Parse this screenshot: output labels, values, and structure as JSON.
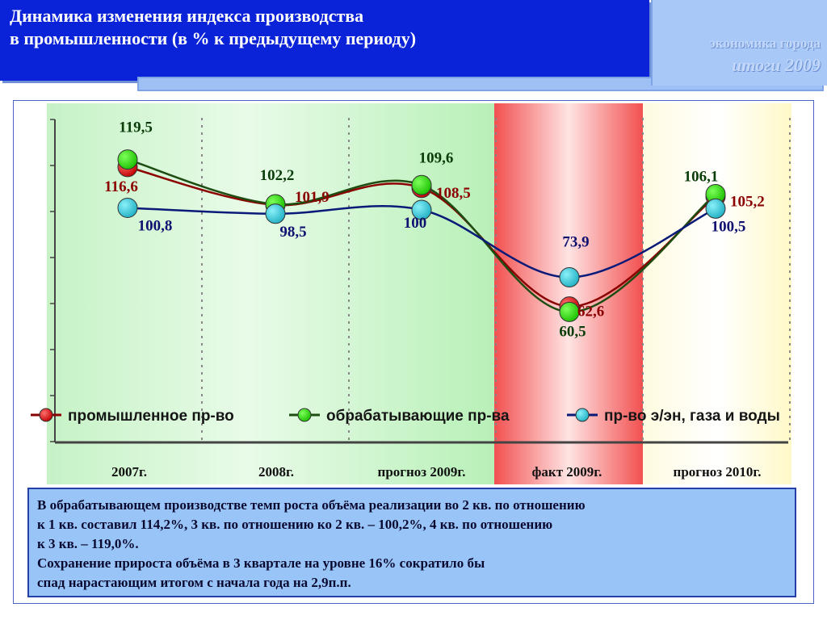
{
  "header": {
    "title_line1": "Динамика изменения индекса производства",
    "title_line2": " в промышленности  (в % к предыдущему периоду)",
    "logo_line1": "экономика города",
    "logo_line2": "итоги  2009"
  },
  "chart_data": {
    "type": "line",
    "categories": [
      "2007г.",
      "2008г.",
      "прогноз 2009г.",
      "факт 2009г.",
      "прогноз 2010г."
    ],
    "series": [
      {
        "name": "промышленное пр-во",
        "color": "#e01010",
        "label_color": "#8b0000",
        "values": [
          116.6,
          101.9,
          108.5,
          62.6,
          105.2
        ]
      },
      {
        "name": "обрабатывающие пр-ва",
        "color": "#22dd00",
        "label_color": "#0a3d0a",
        "values": [
          119.5,
          102.2,
          109.6,
          60.5,
          106.1
        ]
      },
      {
        "name": "пр-во э/эн, газа и воды",
        "color": "#30c8d8",
        "label_color": "#101070",
        "values": [
          100.8,
          98.5,
          100,
          73.9,
          100.5
        ]
      }
    ],
    "value_labels": [
      [
        "116,6",
        "101,9",
        "108,5",
        "62,6",
        "105,2"
      ],
      [
        "119,5",
        "102,2",
        "109,6",
        "60,5",
        "106,1"
      ],
      [
        "100,8",
        "98,5",
        "100",
        "73,9",
        "100,5"
      ]
    ],
    "ylim": [
      10,
      135
    ],
    "grid": false,
    "legend_position": "bottom"
  },
  "note": {
    "line1": "В обрабатывающем производстве темп роста объёма реализации во 2 кв. по отношению",
    "line2": "к 1 кв. составил 114,2%,  3 кв. по отношению ко 2 кв. – 100,2%,  4 кв. по отношению",
    "line3": "к 3 кв. – 119,0%.",
    "line4": "Сохранение прироста объёма в 3 квартале на уровне 16% сократило бы",
    "line5": "спад нарастающим итогом с начала года на 2,9п.п."
  }
}
